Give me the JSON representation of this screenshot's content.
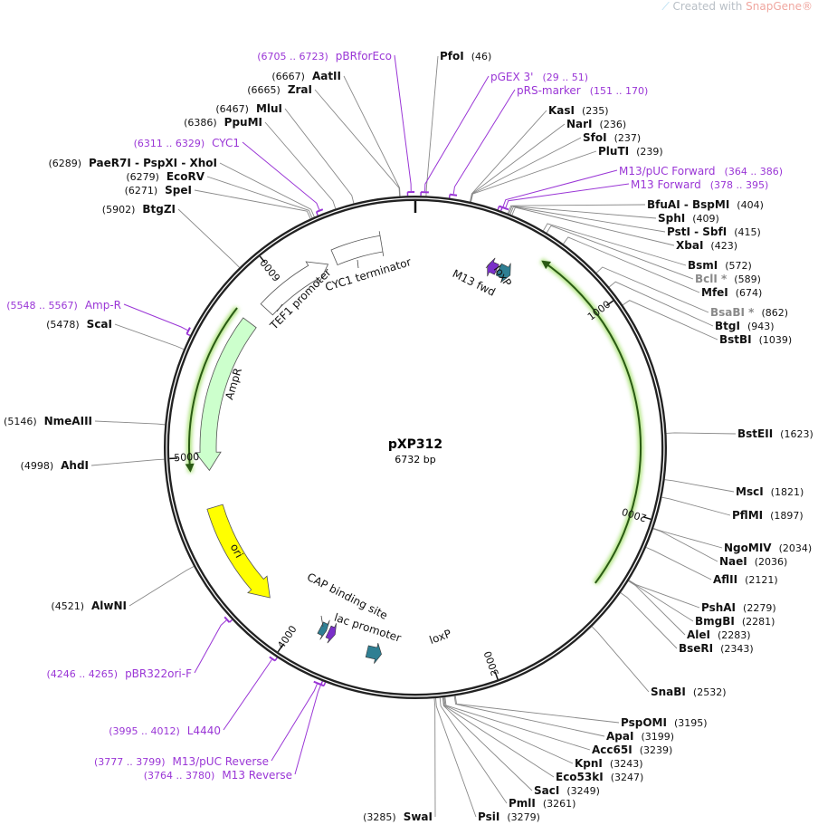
{
  "watermark": {
    "prefix": "Created with ",
    "brand": "SnapGene",
    "mark": "®"
  },
  "plasmid": {
    "name": "pXP312",
    "length_label": "6732 bp",
    "length_bp": 6732
  },
  "colors": {
    "primer": "#9a36d6",
    "ampr_fill": "#ccffcc",
    "ori_fill": "#ffff00",
    "loxp_fill": "#2f7f93",
    "m13_fill": "#7a2fc9",
    "orf_line": "#2a5a14",
    "orf_glow": "#aee37e",
    "backbone": "#222222"
  },
  "ticks": [
    "1000",
    "2000",
    "3000",
    "4000",
    "5000",
    "6000"
  ],
  "enzymes": [
    {
      "name": "PfoI",
      "pos": "(46)",
      "bp": 46
    },
    {
      "name": "KasI",
      "pos": "(235)",
      "bp": 235
    },
    {
      "name": "NarI",
      "pos": "(236)",
      "bp": 236
    },
    {
      "name": "SfoI",
      "pos": "(237)",
      "bp": 237
    },
    {
      "name": "PluTI",
      "pos": "(239)",
      "bp": 239
    },
    {
      "name": "BfuAI - BspMI",
      "pos": "(404)",
      "bp": 404
    },
    {
      "name": "SphI",
      "pos": "(409)",
      "bp": 409
    },
    {
      "name": "PstI - SbfI",
      "pos": "(415)",
      "bp": 415
    },
    {
      "name": "XbaI",
      "pos": "(423)",
      "bp": 423
    },
    {
      "name": "BsmI",
      "pos": "(572)",
      "bp": 572
    },
    {
      "name": "BclI *",
      "pos": "(589)",
      "bp": 589,
      "methylation_sensitive": true
    },
    {
      "name": "MfeI",
      "pos": "(674)",
      "bp": 674
    },
    {
      "name": "BsaBI *",
      "pos": "(862)",
      "bp": 862,
      "methylation_sensitive": true
    },
    {
      "name": "BtgI",
      "pos": "(943)",
      "bp": 943
    },
    {
      "name": "BstBI",
      "pos": "(1039)",
      "bp": 1039
    },
    {
      "name": "BstEII",
      "pos": "(1623)",
      "bp": 1623
    },
    {
      "name": "MscI",
      "pos": "(1821)",
      "bp": 1821
    },
    {
      "name": "PflMI",
      "pos": "(1897)",
      "bp": 1897
    },
    {
      "name": "NgoMIV",
      "pos": "(2034)",
      "bp": 2034
    },
    {
      "name": "NaeI",
      "pos": "(2036)",
      "bp": 2036
    },
    {
      "name": "AflII",
      "pos": "(2121)",
      "bp": 2121
    },
    {
      "name": "PshAI",
      "pos": "(2279)",
      "bp": 2279
    },
    {
      "name": "BmgBI",
      "pos": "(2281)",
      "bp": 2281
    },
    {
      "name": "AleI",
      "pos": "(2283)",
      "bp": 2283
    },
    {
      "name": "BseRI",
      "pos": "(2343)",
      "bp": 2343
    },
    {
      "name": "SnaBI",
      "pos": "(2532)",
      "bp": 2532
    },
    {
      "name": "PspOMI",
      "pos": "(3195)",
      "bp": 3195
    },
    {
      "name": "ApaI",
      "pos": "(3199)",
      "bp": 3199
    },
    {
      "name": "Acc65I",
      "pos": "(3239)",
      "bp": 3239
    },
    {
      "name": "KpnI",
      "pos": "(3243)",
      "bp": 3243
    },
    {
      "name": "Eco53kI",
      "pos": "(3247)",
      "bp": 3247
    },
    {
      "name": "SacI",
      "pos": "(3249)",
      "bp": 3249
    },
    {
      "name": "PmlI",
      "pos": "(3261)",
      "bp": 3261
    },
    {
      "name": "PsiI",
      "pos": "(3279)",
      "bp": 3279
    },
    {
      "name": "SwaI",
      "pos": "(3285)",
      "bp": 3285
    },
    {
      "name": "AlwNI",
      "pos": "(4521)",
      "bp": 4521
    },
    {
      "name": "AhdI",
      "pos": "(4998)",
      "bp": 4998
    },
    {
      "name": "NmeAIII",
      "pos": "(5146)",
      "bp": 5146
    },
    {
      "name": "ScaI",
      "pos": "(5478)",
      "bp": 5478
    },
    {
      "name": "BtgZI",
      "pos": "(5902)",
      "bp": 5902
    },
    {
      "name": "SpeI",
      "pos": "(6271)",
      "bp": 6271
    },
    {
      "name": "EcoRV",
      "pos": "(6279)",
      "bp": 6279
    },
    {
      "name": "PaeR7I - PspXI - XhoI",
      "pos": "(6289)",
      "bp": 6289
    },
    {
      "name": "PpuMI",
      "pos": "(6386)",
      "bp": 6386
    },
    {
      "name": "MluI",
      "pos": "(6467)",
      "bp": 6467
    },
    {
      "name": "ZraI",
      "pos": "(6665)",
      "bp": 6665
    },
    {
      "name": "AatII",
      "pos": "(6667)",
      "bp": 6667
    }
  ],
  "primers": [
    {
      "name": "pGEX 3'",
      "range": "(29 .. 51)",
      "start": 29,
      "end": 51
    },
    {
      "name": "pRS-marker",
      "range": "(151 .. 170)",
      "start": 151,
      "end": 170
    },
    {
      "name": "M13/pUC Forward",
      "range": "(364 .. 386)",
      "start": 364,
      "end": 386
    },
    {
      "name": "M13 Forward",
      "range": "(378 .. 395)",
      "start": 378,
      "end": 395
    },
    {
      "name": "M13 Reverse",
      "range": "(3764 .. 3780)",
      "start": 3764,
      "end": 3780
    },
    {
      "name": "M13/pUC Reverse",
      "range": "(3777 .. 3799)",
      "start": 3777,
      "end": 3799
    },
    {
      "name": "L4440",
      "range": "(3995 .. 4012)",
      "start": 3995,
      "end": 4012
    },
    {
      "name": "pBR322ori-F",
      "range": "(4246 .. 4265)",
      "start": 4246,
      "end": 4265
    },
    {
      "name": "Amp-R",
      "range": "(5548 .. 5567)",
      "start": 5548,
      "end": 5567
    },
    {
      "name": "CYC1",
      "range": "(6311 .. 6329)",
      "start": 6311,
      "end": 6329
    },
    {
      "name": "pBRforEco",
      "range": "(6705 .. 6723)",
      "start": 6705,
      "end": 6723
    }
  ],
  "features": [
    {
      "name": "TEF1 promoter",
      "type": "promoter"
    },
    {
      "name": "CYC1 terminator",
      "type": "terminator"
    },
    {
      "name": "AmpR",
      "type": "cds"
    },
    {
      "name": "ori",
      "type": "rep_origin"
    },
    {
      "name": "M13 fwd",
      "type": "primer_bind"
    },
    {
      "name": "loxP",
      "type": "protein_bind"
    },
    {
      "name": "CAP binding site",
      "type": "protein_bind"
    },
    {
      "name": "lac promoter",
      "type": "promoter"
    },
    {
      "name": "loxP",
      "type": "protein_bind"
    }
  ]
}
